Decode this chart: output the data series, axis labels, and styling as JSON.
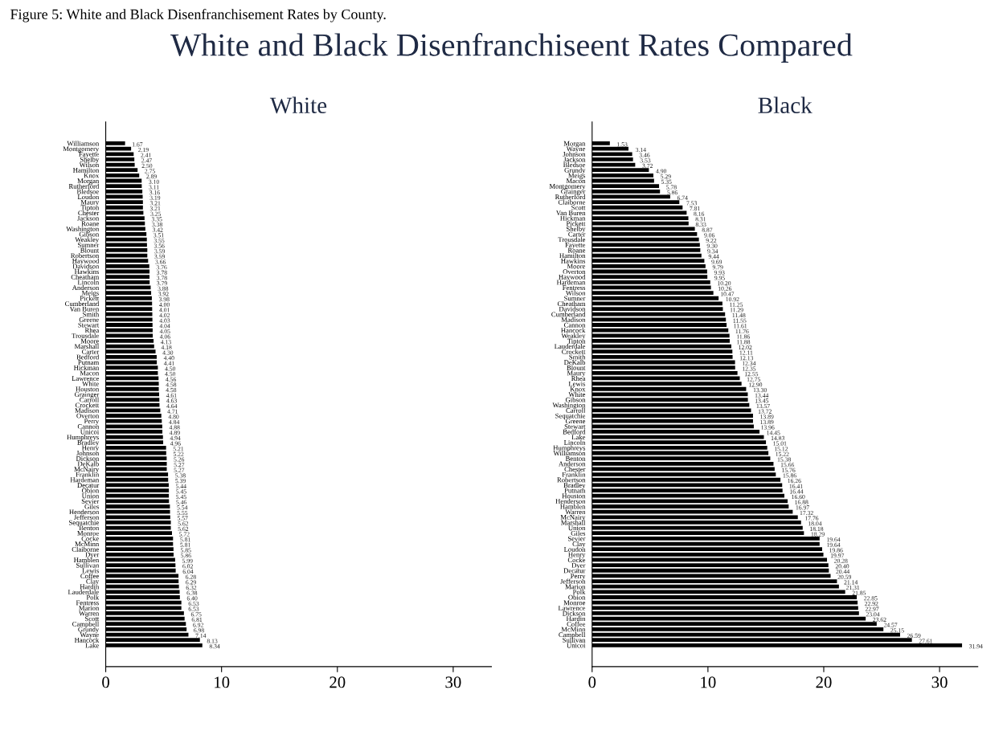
{
  "chart_data": [
    {
      "type": "bar",
      "orientation": "horizontal",
      "title": "White",
      "color": "#000000",
      "grid": false,
      "legend": false,
      "value_labels": [
        "1.67",
        "2.19",
        "2.41",
        "2.47",
        "2.50",
        "2.75",
        "2.89",
        "3.10",
        "3.11",
        "3.16",
        "3.19",
        "3.21",
        "3.21",
        "3.25",
        "3.35",
        "3.38",
        "3.42",
        "3.51",
        "3.55",
        "3.56",
        "3.59",
        "3.59",
        "3.66",
        "3.76",
        "3.78",
        "3.78",
        "3.79",
        "3.88",
        "3.92",
        "3.98",
        "4.00",
        "4.01",
        "4.02",
        "4.03",
        "4.04",
        "4.05",
        "4.06",
        "4.13",
        "4.18",
        "4.30",
        "4.40",
        "4.41",
        "4.50",
        "4.50",
        "4.56",
        "4.58",
        "4.58",
        "4.61",
        "4.63",
        "4.64",
        "4.71",
        "4.80",
        "4.84",
        "4.88",
        "4.89",
        "4.94",
        "4.96",
        "5.21",
        "5.22",
        "5.26",
        "5.27",
        "5.27",
        "5.38",
        "5.39",
        "5.44",
        "5.45",
        "5.45",
        "5.46",
        "5.54",
        "5.55",
        "5.57",
        "5.62",
        "5.62",
        "5.72",
        "5.81",
        "5.81",
        "5.85",
        "5.86",
        "5.99",
        "6.02",
        "6.04",
        "6.28",
        "6.29",
        "6.32",
        "6.38",
        "6.40",
        "6.53",
        "6.53",
        "6.75",
        "6.81",
        "6.92",
        "6.98",
        "7.14",
        "8.13",
        "8.34"
      ],
      "annotations": [
        "Figure 5: White and Black Disenfranchisement Rates by County.",
        "White and Black Disenfranchiseent Rates Compared"
      ],
      "xlim": [
        0,
        33.3
      ],
      "xticks": [
        0,
        10,
        20,
        30
      ],
      "categories": [
        "Williamson",
        "Montgomery",
        "Fayette",
        "Shelby",
        "Wilson",
        "Hamilton",
        "Knox",
        "Morgan",
        "Rutherford",
        "Bledsoe",
        "Loudon",
        "Maury",
        "Tipton",
        "Chester",
        "Jackson",
        "Roane",
        "Washington",
        "Gibson",
        "Weakley",
        "Sumner",
        "Blount",
        "Robertson",
        "Haywood",
        "Davidson",
        "Hawkins",
        "Cheatham",
        "Lincoln",
        "Anderson",
        "Meigs",
        "Pickett",
        "Cumberland",
        "Van Buren",
        "Smith",
        "Greene",
        "Stewart",
        "Rhea",
        "Trousdale",
        "Moore",
        "Marshall",
        "Carter",
        "Bedford",
        "Putnam",
        "Hickman",
        "Macon",
        "Lawrence",
        "White",
        "Houston",
        "Grainger",
        "Carroll",
        "Crockett",
        "Madison",
        "Overton",
        "Perry",
        "Cannon",
        "Unicoi",
        "Humphreys",
        "Bradley",
        "Henry",
        "Johnson",
        "Dickson",
        "DeKalb",
        "McNairy",
        "Franklin",
        "Hardeman",
        "Decatur",
        "Obion",
        "Union",
        "Sevier",
        "Giles",
        "Henderson",
        "Jefferson",
        "Sequatchie",
        "Benton",
        "Monroe",
        "Cocke",
        "McMinn",
        "Claiborne",
        "Dyer",
        "Hamblen",
        "Sullivan",
        "Lewis",
        "Coffee",
        "Clay",
        "Hardin",
        "Lauderdale",
        "Polk",
        "Fentress",
        "Marion",
        "Warren",
        "Scott",
        "Campbell",
        "Grundy",
        "Wayne",
        "Hancock",
        "Lake"
      ],
      "values": [
        1.67,
        2.19,
        2.41,
        2.47,
        2.5,
        2.75,
        2.89,
        3.1,
        3.11,
        3.16,
        3.19,
        3.21,
        3.21,
        3.25,
        3.35,
        3.38,
        3.42,
        3.51,
        3.55,
        3.56,
        3.59,
        3.59,
        3.66,
        3.76,
        3.78,
        3.78,
        3.79,
        3.88,
        3.92,
        3.98,
        4.0,
        4.01,
        4.02,
        4.03,
        4.04,
        4.05,
        4.06,
        4.13,
        4.18,
        4.3,
        4.4,
        4.41,
        4.5,
        4.5,
        4.56,
        4.58,
        4.58,
        4.61,
        4.63,
        4.64,
        4.71,
        4.8,
        4.84,
        4.88,
        4.89,
        4.94,
        4.96,
        5.21,
        5.22,
        5.26,
        5.27,
        5.27,
        5.38,
        5.39,
        5.44,
        5.45,
        5.45,
        5.46,
        5.54,
        5.55,
        5.57,
        5.62,
        5.62,
        5.72,
        5.81,
        5.81,
        5.85,
        5.86,
        5.99,
        6.02,
        6.04,
        6.28,
        6.29,
        6.32,
        6.38,
        6.4,
        6.53,
        6.53,
        6.75,
        6.81,
        6.92,
        6.98,
        7.14,
        8.13,
        8.34
      ]
    },
    {
      "type": "bar",
      "orientation": "horizontal",
      "title": "Black",
      "color": "#000000",
      "grid": false,
      "legend": false,
      "value_labels": [
        "1.53",
        "3.14",
        "3.46",
        "3.53",
        "3.72",
        "4.90",
        "5.29",
        "5.35",
        "5.78",
        "5.86",
        "6.74",
        "7.53",
        "7.81",
        "8.16",
        "8.31",
        "8.33",
        "8.87",
        "9.06",
        "9.22",
        "9.30",
        "9.34",
        "9.44",
        "9.69",
        "9.79",
        "9.93",
        "9.95",
        "10.20",
        "10.26",
        "10.47",
        "10.92",
        "11.25",
        "11.29",
        "11.48",
        "11.55",
        "11.61",
        "11.76",
        "11.86",
        "11.88",
        "12.02",
        "12.11",
        "12.13",
        "12.34",
        "12.35",
        "12.55",
        "12.75",
        "12.90",
        "13.30",
        "13.44",
        "13.45",
        "13.57",
        "13.72",
        "13.89",
        "13.89",
        "13.96",
        "14.45",
        "14.83",
        "15.01",
        "15.12",
        "15.22",
        "15.38",
        "15.66",
        "15.76",
        "15.86",
        "16.26",
        "16.41",
        "16.44",
        "16.60",
        "16.88",
        "16.97",
        "17.32",
        "17.76",
        "18.04",
        "18.18",
        "18.29",
        "19.64",
        "19.64",
        "19.86",
        "19.97",
        "20.28",
        "20.40",
        "20.44",
        "20.59",
        "21.14",
        "21.31",
        "21.85",
        "22.85",
        "22.92",
        "22.97",
        "23.04",
        "23.62",
        "24.57",
        "25.15",
        "26.59",
        "27.61",
        "31.94"
      ],
      "xlim": [
        0,
        33.3
      ],
      "xticks": [
        0,
        10,
        20,
        30
      ],
      "categories": [
        "Morgan",
        "Wayne",
        "Johnson",
        "Jackson",
        "Bledsoe",
        "Grundy",
        "Meigs",
        "Macon",
        "Montgomery",
        "Grainger",
        "Rutherford",
        "Claiborne",
        "Scott",
        "Van Buren",
        "Hickman",
        "Pickett",
        "Shelby",
        "Carter",
        "Trousdale",
        "Fayette",
        "Roane",
        "Hamilton",
        "Hawkins",
        "Moore",
        "Overton",
        "Haywood",
        "Hardeman",
        "Fentress",
        "Wilson",
        "Sumner",
        "Cheatham",
        "Davidson",
        "Cumberland",
        "Madison",
        "Cannon",
        "Hancock",
        "Weakley",
        "Tipton",
        "Lauderdale",
        "Crockett",
        "Smith",
        "DeKalb",
        "Blount",
        "Maury",
        "Rhea",
        "Lewis",
        "Knox",
        "White",
        "Gibson",
        "Washington",
        "Carroll",
        "Sequatchie",
        "Greene",
        "Stewart",
        "Bedford",
        "Lake",
        "Lincoln",
        "Humphreys",
        "Williamson",
        "Benton",
        "Anderson",
        "Chester",
        "Franklin",
        "Robertson",
        "Bradley",
        "Putnam",
        "Houston",
        "Henderson",
        "Hamblen",
        "Warren",
        "McNairy",
        "Marshall",
        "Union",
        "Giles",
        "Sevier",
        "Clay",
        "Loudon",
        "Henry",
        "Cocke",
        "Dyer",
        "Decatur",
        "Perry",
        "Jefferson",
        "Marion",
        "Polk",
        "Obion",
        "Monroe",
        "Lawrence",
        "Dickson",
        "Hardin",
        "Coffee",
        "McMinn",
        "Campbell",
        "Sullivan",
        "Unicoi"
      ],
      "values": [
        1.53,
        3.14,
        3.46,
        3.53,
        3.72,
        4.9,
        5.29,
        5.35,
        5.78,
        5.86,
        6.74,
        7.53,
        7.81,
        8.16,
        8.31,
        8.33,
        8.87,
        9.06,
        9.22,
        9.3,
        9.34,
        9.44,
        9.69,
        9.79,
        9.93,
        9.95,
        10.2,
        10.26,
        10.47,
        10.92,
        11.25,
        11.29,
        11.48,
        11.55,
        11.61,
        11.76,
        11.86,
        11.88,
        12.02,
        12.11,
        12.13,
        12.34,
        12.35,
        12.55,
        12.75,
        12.9,
        13.3,
        13.44,
        13.45,
        13.57,
        13.72,
        13.89,
        13.89,
        13.96,
        14.45,
        14.83,
        15.01,
        15.12,
        15.22,
        15.38,
        15.66,
        15.76,
        15.86,
        16.26,
        16.41,
        16.44,
        16.6,
        16.88,
        16.97,
        17.32,
        17.76,
        18.04,
        18.18,
        18.29,
        19.64,
        19.64,
        19.86,
        19.97,
        20.28,
        20.4,
        20.44,
        20.59,
        21.14,
        21.31,
        21.85,
        22.85,
        22.92,
        22.97,
        23.04,
        23.62,
        24.57,
        25.15,
        26.59,
        27.61,
        31.94
      ]
    }
  ]
}
